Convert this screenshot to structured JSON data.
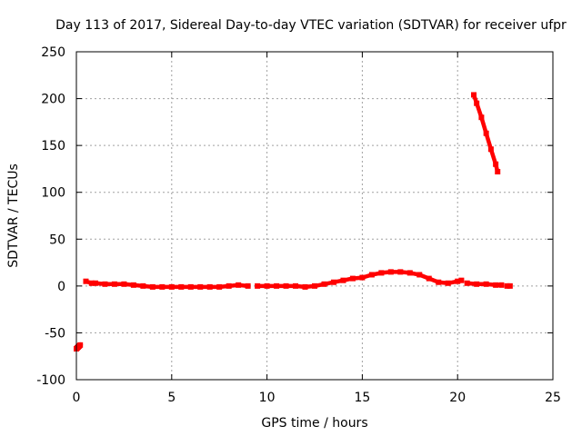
{
  "chart_data": {
    "type": "scatter",
    "title": "Day 113 of 2017, Sidereal Day-to-day VTEC variation (SDTVAR) for receiver ufpr",
    "xlabel": "GPS time / hours",
    "ylabel": "SDTVAR / TECUs",
    "xlim": [
      0,
      25
    ],
    "ylim": [
      -100,
      250
    ],
    "xticks": [
      "0",
      "5",
      "10",
      "15",
      "20",
      "25"
    ],
    "yticks": [
      "-100",
      "-50",
      "0",
      "50",
      "100",
      "150",
      "200",
      "250"
    ],
    "grid": true,
    "legend": "none",
    "color": "#ff0000",
    "series": [
      {
        "x": [
          0.0,
          0.05,
          0.1,
          0.15,
          0.2
        ],
        "y": [
          -67,
          -66,
          -65,
          -64,
          -63
        ]
      },
      {
        "x": [
          0.5,
          0.8,
          1.0,
          1.5,
          2.0,
          2.5,
          3.0,
          3.5,
          4.0,
          4.5,
          5.0,
          5.5,
          6.0,
          6.5,
          7.0,
          7.5,
          8.0,
          8.5,
          9.0
        ],
        "y": [
          5,
          3,
          3,
          2,
          2,
          2,
          1,
          0,
          -1,
          -1,
          -1,
          -1,
          -1,
          -1,
          -1,
          -1,
          0,
          1,
          0
        ]
      },
      {
        "x": [
          9.5,
          10.0,
          10.5,
          11.0,
          11.5,
          12.0,
          12.5,
          13.0,
          13.5,
          14.0,
          14.5,
          15.0,
          15.5,
          16.0,
          16.5,
          17.0,
          17.5,
          18.0,
          18.5,
          19.0,
          19.5,
          20.0,
          20.2
        ],
        "y": [
          0,
          0,
          0,
          0,
          0,
          -1,
          0,
          2,
          4,
          6,
          8,
          9,
          12,
          14,
          15,
          15,
          14,
          12,
          8,
          4,
          3,
          5,
          6
        ]
      },
      {
        "x": [
          20.5,
          21.0,
          21.5,
          22.0,
          22.3
        ],
        "y": [
          3,
          2,
          2,
          1,
          1
        ]
      },
      {
        "x": [
          22.6,
          22.75
        ],
        "y": [
          0,
          0
        ]
      },
      {
        "x": [
          20.85,
          21.0,
          21.25,
          21.5,
          21.75,
          22.0,
          22.1
        ],
        "y": [
          204,
          195,
          180,
          163,
          146,
          130,
          122
        ]
      }
    ]
  }
}
